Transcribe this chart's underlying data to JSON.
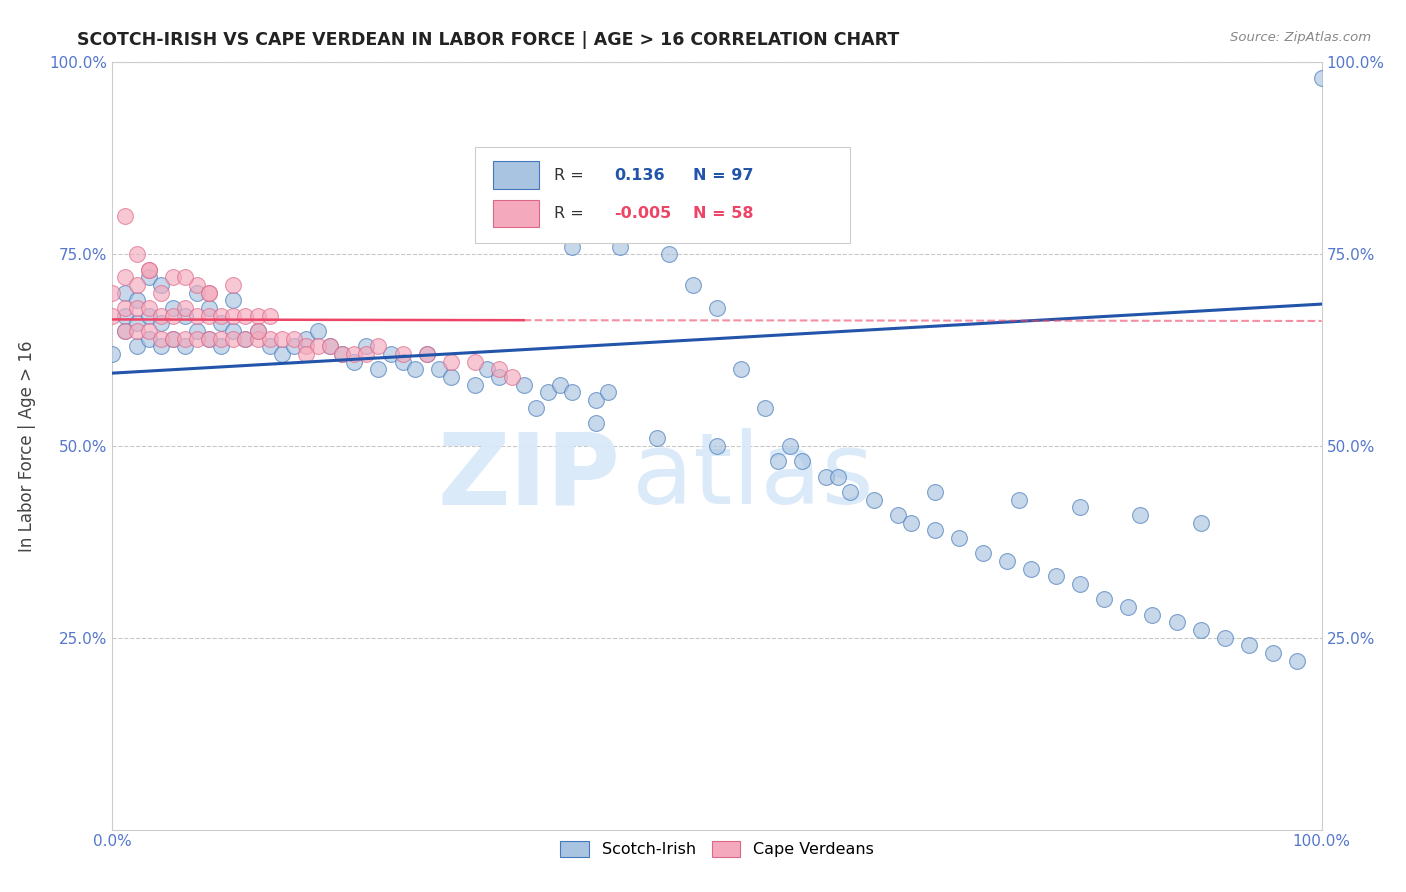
{
  "title": "SCOTCH-IRISH VS CAPE VERDEAN IN LABOR FORCE | AGE > 16 CORRELATION CHART",
  "source": "Source: ZipAtlas.com",
  "ylabel": "In Labor Force | Age > 16",
  "xlim": [
    0,
    1
  ],
  "ylim": [
    0,
    1
  ],
  "scotch_irish_R": 0.136,
  "scotch_irish_N": 97,
  "cape_verdean_R": -0.005,
  "cape_verdean_N": 58,
  "blue_fill": "#A8C4E0",
  "blue_edge": "#4477BB",
  "pink_fill": "#F4AABC",
  "pink_edge": "#DD6688",
  "blue_line": "#2255AA",
  "pink_line": "#EE4466",
  "grid_color": "#BBBBBB",
  "background_color": "#FFFFFF",
  "watermark_color": "#D8E8F8",
  "tick_color": "#5577CC",
  "title_color": "#222222",
  "source_color": "#888888",
  "scotch_irish_x": [
    0.0,
    0.01,
    0.01,
    0.01,
    0.02,
    0.02,
    0.02,
    0.03,
    0.03,
    0.03,
    0.04,
    0.04,
    0.04,
    0.05,
    0.05,
    0.06,
    0.06,
    0.07,
    0.07,
    0.08,
    0.08,
    0.09,
    0.09,
    0.1,
    0.1,
    0.11,
    0.12,
    0.13,
    0.14,
    0.15,
    0.16,
    0.17,
    0.18,
    0.19,
    0.2,
    0.21,
    0.22,
    0.23,
    0.24,
    0.25,
    0.26,
    0.27,
    0.28,
    0.3,
    0.31,
    0.32,
    0.34,
    0.36,
    0.37,
    0.38,
    0.38,
    0.4,
    0.41,
    0.42,
    0.43,
    0.44,
    0.45,
    0.46,
    0.48,
    0.5,
    0.52,
    0.54,
    0.56,
    0.57,
    0.59,
    0.61,
    0.63,
    0.65,
    0.66,
    0.68,
    0.7,
    0.72,
    0.74,
    0.76,
    0.78,
    0.8,
    0.82,
    0.84,
    0.86,
    0.88,
    0.9,
    0.92,
    0.94,
    0.96,
    0.98,
    1.0,
    0.35,
    0.4,
    0.45,
    0.5,
    0.55,
    0.6,
    0.68,
    0.75,
    0.8,
    0.85,
    0.9
  ],
  "scotch_irish_y": [
    0.62,
    0.65,
    0.67,
    0.7,
    0.63,
    0.66,
    0.69,
    0.64,
    0.67,
    0.72,
    0.63,
    0.66,
    0.71,
    0.64,
    0.68,
    0.63,
    0.67,
    0.65,
    0.7,
    0.64,
    0.68,
    0.63,
    0.66,
    0.65,
    0.69,
    0.64,
    0.65,
    0.63,
    0.62,
    0.63,
    0.64,
    0.65,
    0.63,
    0.62,
    0.61,
    0.63,
    0.6,
    0.62,
    0.61,
    0.6,
    0.62,
    0.6,
    0.59,
    0.58,
    0.6,
    0.59,
    0.58,
    0.57,
    0.58,
    0.57,
    0.76,
    0.56,
    0.57,
    0.76,
    0.84,
    0.82,
    0.78,
    0.75,
    0.71,
    0.68,
    0.6,
    0.55,
    0.5,
    0.48,
    0.46,
    0.44,
    0.43,
    0.41,
    0.4,
    0.39,
    0.38,
    0.36,
    0.35,
    0.34,
    0.33,
    0.32,
    0.3,
    0.29,
    0.28,
    0.27,
    0.26,
    0.25,
    0.24,
    0.23,
    0.22,
    0.98,
    0.55,
    0.53,
    0.51,
    0.5,
    0.48,
    0.46,
    0.44,
    0.43,
    0.42,
    0.41,
    0.4
  ],
  "cape_verdean_x": [
    0.0,
    0.0,
    0.01,
    0.01,
    0.01,
    0.02,
    0.02,
    0.02,
    0.03,
    0.03,
    0.03,
    0.04,
    0.04,
    0.04,
    0.05,
    0.05,
    0.05,
    0.06,
    0.06,
    0.07,
    0.07,
    0.07,
    0.08,
    0.08,
    0.08,
    0.09,
    0.09,
    0.1,
    0.1,
    0.1,
    0.11,
    0.11,
    0.12,
    0.12,
    0.13,
    0.13,
    0.14,
    0.15,
    0.16,
    0.17,
    0.18,
    0.19,
    0.2,
    0.21,
    0.22,
    0.24,
    0.26,
    0.28,
    0.3,
    0.32,
    0.33,
    0.01,
    0.02,
    0.03,
    0.06,
    0.08,
    0.12,
    0.16
  ],
  "cape_verdean_y": [
    0.67,
    0.7,
    0.65,
    0.68,
    0.72,
    0.65,
    0.68,
    0.71,
    0.65,
    0.68,
    0.73,
    0.64,
    0.67,
    0.7,
    0.64,
    0.67,
    0.72,
    0.64,
    0.68,
    0.64,
    0.67,
    0.71,
    0.64,
    0.67,
    0.7,
    0.64,
    0.67,
    0.64,
    0.67,
    0.71,
    0.64,
    0.67,
    0.64,
    0.67,
    0.64,
    0.67,
    0.64,
    0.64,
    0.63,
    0.63,
    0.63,
    0.62,
    0.62,
    0.62,
    0.63,
    0.62,
    0.62,
    0.61,
    0.61,
    0.6,
    0.59,
    0.8,
    0.75,
    0.73,
    0.72,
    0.7,
    0.65,
    0.62
  ],
  "blue_trendline_x0": 0.0,
  "blue_trendline_y0": 0.595,
  "blue_trendline_x1": 1.0,
  "blue_trendline_y1": 0.685,
  "pink_trendline_x0": 0.0,
  "pink_trendline_x1": 0.34,
  "pink_trendline_y0": 0.665,
  "pink_trendline_y1": 0.664
}
